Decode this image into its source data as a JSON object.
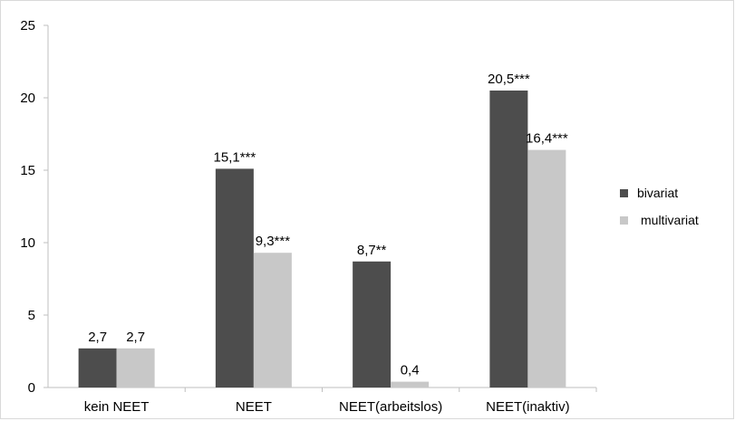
{
  "chart_data": {
    "type": "bar",
    "title": "",
    "xlabel": "",
    "ylabel": "",
    "categories": [
      "kein NEET",
      "NEET",
      "NEET(arbeitslos)",
      "NEET(inaktiv)"
    ],
    "series": [
      {
        "name": "bivariat",
        "color": "#4d4d4d",
        "values": [
          2.7,
          15.1,
          8.7,
          20.5
        ],
        "labels": [
          "2,7",
          "15,1***",
          "8,7**",
          "20,5***"
        ]
      },
      {
        "name": "multivariat",
        "color": "#c8c8c8",
        "values": [
          2.7,
          9.3,
          0.4,
          16.4
        ],
        "labels": [
          "2,7",
          "9,3***",
          "0,4",
          "16,4***"
        ]
      }
    ],
    "ylim": [
      0,
      25
    ],
    "yticks": [
      0,
      5,
      10,
      15,
      20,
      25
    ],
    "grid": false,
    "legend_position": "right"
  }
}
